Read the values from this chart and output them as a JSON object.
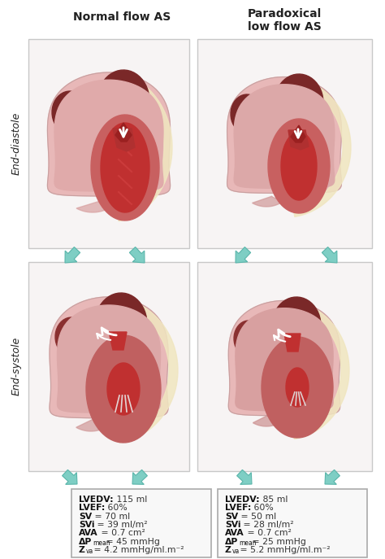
{
  "title_left": "Normal flow AS",
  "title_right": "Paradoxical\nlow flow AS",
  "label_diastole": "End-diastole",
  "label_systole": "End-systole",
  "box_left": [
    [
      "LVEDV:",
      " 115 ml",
      ""
    ],
    [
      "LVEF:",
      " 60%",
      ""
    ],
    [
      "SV",
      " = 70 ml",
      ""
    ],
    [
      "SVi",
      " = 39 ml/m²",
      ""
    ],
    [
      "AVA",
      " = 0.7 cm²",
      ""
    ],
    [
      "ΔP",
      " = 45 mmHg",
      "mean"
    ],
    [
      "Z",
      " = 4.2 mmHg/ml.m⁻²",
      "va"
    ]
  ],
  "box_right": [
    [
      "LVEDV:",
      " 85 ml",
      ""
    ],
    [
      "LVEF:",
      " 60%",
      ""
    ],
    [
      "SV",
      " = 50 ml",
      ""
    ],
    [
      "SVi",
      " = 28 ml/m²",
      ""
    ],
    [
      "AVA",
      " = 0.7 cm²",
      ""
    ],
    [
      "ΔP",
      " = 25 mmHg",
      "mean"
    ],
    [
      "Z",
      " = 5.2 mmHg/ml.m⁻²",
      "va"
    ]
  ],
  "bg": "#ffffff",
  "panel_bg": "#f7f4f4",
  "panel_edge": "#c8c8c8",
  "teal": "#7ecec4",
  "teal_edge": "#5ab5aa",
  "heart_outer": "#e8b8b8",
  "heart_outer_edge": "#c8a0a0",
  "cream": "#f0e6c0",
  "cream_edge": "#d4c090",
  "lv_fill": "#c03030",
  "lv_muscle": "#b84848",
  "lv_muscle2": "#cc5050",
  "aorta_dark": "#7a2828",
  "aorta_mid": "#8c3030",
  "rv_fill": "#e0a8a8",
  "rv_edge": "#c89090",
  "white_arr": "#ffffff",
  "box_bg": "#f8f8f8",
  "box_edge": "#aaaaaa",
  "text_bold": "#111111",
  "text_normal": "#333333"
}
